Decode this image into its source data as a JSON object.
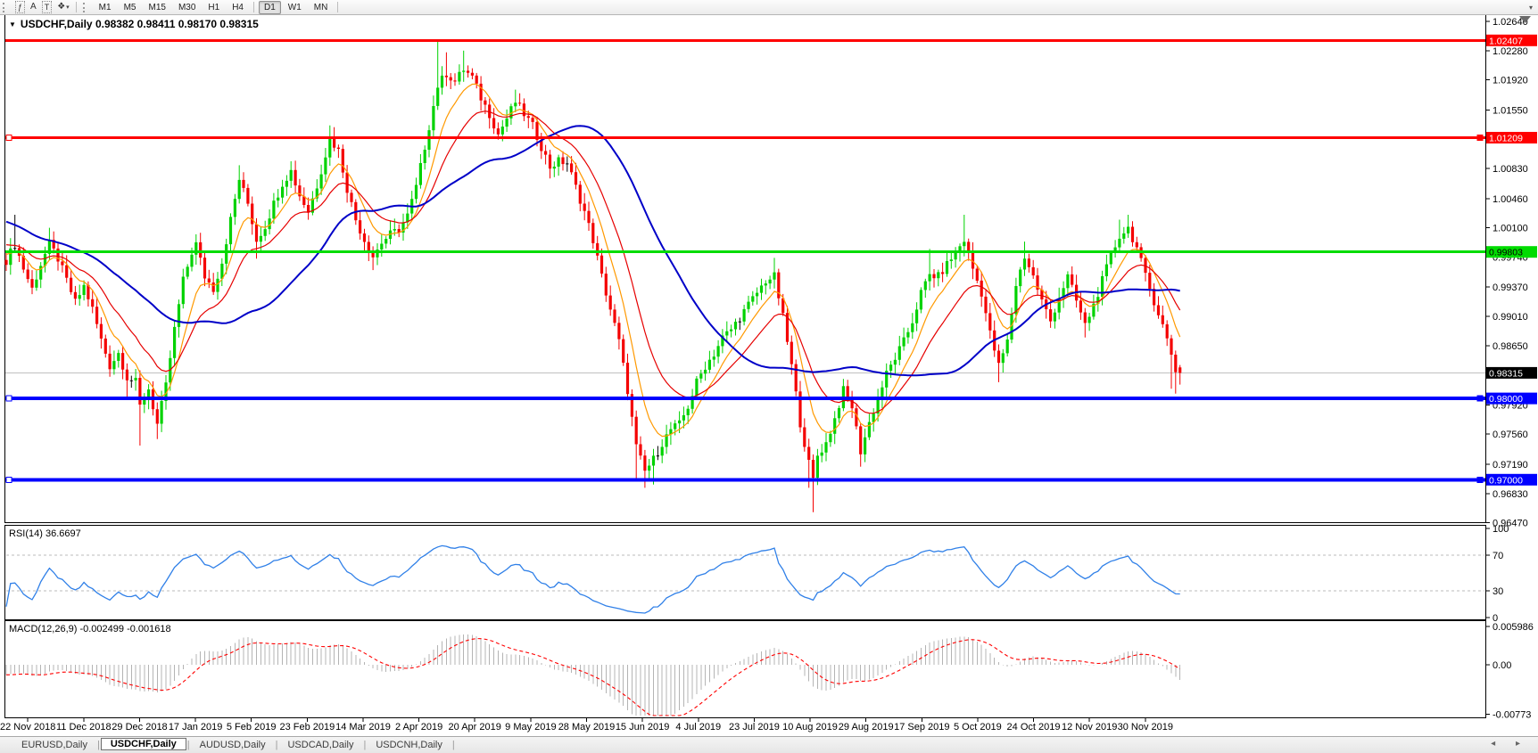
{
  "toolbar": {
    "tools": [
      {
        "id": "indicators",
        "glyph": "ƒ",
        "boxed": true
      },
      {
        "id": "text-label",
        "glyph": "A",
        "boxed": false
      },
      {
        "id": "text",
        "glyph": "T",
        "boxed": true
      },
      {
        "id": "arrow-styles",
        "glyph": "❖",
        "caret": true
      }
    ],
    "timeframes": [
      "M1",
      "M5",
      "M15",
      "M30",
      "H1",
      "H4",
      "D1",
      "W1",
      "MN"
    ],
    "active_timeframe": "D1",
    "overflow_icon": "▾"
  },
  "chart": {
    "dropdown_icon": "▼",
    "title_line": "USDCHF,Daily  0.98382 0.98411 0.98170 0.98315"
  },
  "indicators": {
    "rsi_label": "RSI(14) 36.6697",
    "macd_label": "MACD(12,26,9) -0.002499 -0.001618"
  },
  "tabs": {
    "items": [
      "EURUSD,Daily",
      "USDCHF,Daily",
      "AUDUSD,Daily",
      "USDCAD,Daily",
      "USDCNH,Daily"
    ],
    "active_index": 1,
    "scroll_left_icon": "◂",
    "scroll_right_icon": "▸"
  },
  "chart_data": {
    "type": "candlestick",
    "symbol": "USDCHF",
    "timeframe": "Daily",
    "ohlc_display": {
      "open": 0.98382,
      "high": 0.98411,
      "low": 0.9817,
      "close": 0.98315
    },
    "price_axis": {
      "range_top": 1.02717,
      "range_bottom": 0.96477,
      "ticks": [
        "1.02640",
        "1.02280",
        "1.01920",
        "1.01550",
        "1.00830",
        "1.00460",
        "1.00100",
        "0.99740",
        "0.99370",
        "0.99010",
        "0.98650",
        "0.97920",
        "0.97560",
        "0.97190",
        "0.96830",
        "0.96470"
      ]
    },
    "date_axis": [
      "22 Nov 2018",
      "11 Dec 2018",
      "29 Dec 2018",
      "17 Jan 2019",
      "5 Feb 2019",
      "23 Feb 2019",
      "14 Mar 2019",
      "2 Apr 2019",
      "20 Apr 2019",
      "9 May 2019",
      "28 May 2019",
      "15 Jun 2019",
      "4 Jul 2019",
      "23 Jul 2019",
      "10 Aug 2019",
      "29 Aug 2019",
      "17 Sep 2019",
      "5 Oct 2019",
      "24 Oct 2019",
      "12 Nov 2019",
      "30 Nov 2019"
    ],
    "levels": [
      {
        "value": 1.02407,
        "label": "1.02407",
        "color": "#ff0000",
        "tag_bg": "#ff0000",
        "tag_text": "#ffffff",
        "thickness": 3,
        "handles": false
      },
      {
        "value": 1.01209,
        "label": "1.01209",
        "color": "#ff0000",
        "tag_bg": "#ff0000",
        "tag_text": "#ffffff",
        "thickness": 3,
        "handles": true
      },
      {
        "value": 0.99803,
        "label": "0.99803",
        "color": "#00dc00",
        "tag_bg": "#00dc00",
        "tag_text": "#000000",
        "thickness": 3,
        "handles": false
      },
      {
        "value": 0.98315,
        "label": "0.98315",
        "color": "#c0c0c0",
        "tag_bg": "#000000",
        "tag_text": "#ffffff",
        "thickness": 1,
        "handles": false,
        "is_current_price": true
      },
      {
        "value": 0.98,
        "label": "0.98000",
        "color": "#0000ff",
        "tag_bg": "#0000ff",
        "tag_text": "#ffffff",
        "thickness": 4,
        "handles": true
      },
      {
        "value": 0.97,
        "label": "0.97000",
        "color": "#0000ff",
        "tag_bg": "#0000ff",
        "tag_text": "#ffffff",
        "thickness": 4,
        "handles": true
      }
    ],
    "candles": {
      "count": 273,
      "up_color": "#00d200",
      "down_color": "#f40000",
      "doji_color": "#000000",
      "close_waypoints": [
        [
          0,
          0.997
        ],
        [
          2,
          0.999
        ],
        [
          4,
          0.996
        ],
        [
          6,
          0.9935
        ],
        [
          8,
          0.9965
        ],
        [
          10,
          0.999
        ],
        [
          12,
          0.9972
        ],
        [
          14,
          0.9945
        ],
        [
          16,
          0.9918
        ],
        [
          18,
          0.9938
        ],
        [
          20,
          0.991
        ],
        [
          22,
          0.9872
        ],
        [
          24,
          0.984
        ],
        [
          26,
          0.9856
        ],
        [
          28,
          0.9826
        ],
        [
          30,
          0.982
        ],
        [
          31,
          0.979
        ],
        [
          33,
          0.9812
        ],
        [
          35,
          0.9768
        ],
        [
          37,
          0.9815
        ],
        [
          39,
          0.9885
        ],
        [
          41,
          0.9945
        ],
        [
          43,
          0.998
        ],
        [
          44,
          0.999
        ],
        [
          46,
          0.995
        ],
        [
          48,
          0.9935
        ],
        [
          50,
          0.9968
        ],
        [
          52,
          1.002
        ],
        [
          54,
          1.007
        ],
        [
          56,
          1.004
        ],
        [
          58,
          0.9995
        ],
        [
          60,
          1.0012
        ],
        [
          62,
          1.004
        ],
        [
          64,
          1.0065
        ],
        [
          66,
          1.008
        ],
        [
          68,
          1.005
        ],
        [
          70,
          1.003
        ],
        [
          72,
          1.0062
        ],
        [
          74,
          1.01
        ],
        [
          75,
          1.012
        ],
        [
          77,
          1.0105
        ],
        [
          79,
          1.0058
        ],
        [
          81,
          1.002
        ],
        [
          83,
          0.9995
        ],
        [
          85,
          0.9975
        ],
        [
          87,
          0.9992
        ],
        [
          89,
          1.0002
        ],
        [
          91,
          1.0008
        ],
        [
          93,
          1.0025
        ],
        [
          95,
          1.006
        ],
        [
          97,
          1.011
        ],
        [
          99,
          1.016
        ],
        [
          100,
          1.0185
        ],
        [
          102,
          1.02
        ],
        [
          104,
          1.019
        ],
        [
          106,
          1.0205
        ],
        [
          108,
          1.0195
        ],
        [
          110,
          1.017
        ],
        [
          112,
          1.015
        ],
        [
          114,
          1.0125
        ],
        [
          116,
          1.0145
        ],
        [
          118,
          1.0165
        ],
        [
          120,
          1.015
        ],
        [
          122,
          1.0135
        ],
        [
          124,
          1.011
        ],
        [
          126,
          1.0085
        ],
        [
          128,
          1.0092
        ],
        [
          130,
          1.009
        ],
        [
          132,
          1.006
        ],
        [
          134,
          1.003
        ],
        [
          136,
          0.9995
        ],
        [
          138,
          0.995
        ],
        [
          140,
          0.991
        ],
        [
          142,
          0.987
        ],
        [
          144,
          0.981
        ],
        [
          146,
          0.974
        ],
        [
          148,
          0.971
        ],
        [
          150,
          0.9725
        ],
        [
          152,
          0.9745
        ],
        [
          154,
          0.9762
        ],
        [
          156,
          0.9768
        ],
        [
          158,
          0.979
        ],
        [
          160,
          0.982
        ],
        [
          162,
          0.984
        ],
        [
          164,
          0.9855
        ],
        [
          166,
          0.9875
        ],
        [
          168,
          0.9885
        ],
        [
          170,
          0.99
        ],
        [
          172,
          0.9915
        ],
        [
          174,
          0.993
        ],
        [
          176,
          0.9945
        ],
        [
          178,
          0.995
        ],
        [
          180,
          0.99
        ],
        [
          182,
          0.984
        ],
        [
          184,
          0.977
        ],
        [
          186,
          0.972
        ],
        [
          187,
          0.97
        ],
        [
          188,
          0.973
        ],
        [
          190,
          0.9745
        ],
        [
          192,
          0.9775
        ],
        [
          194,
          0.981
        ],
        [
          196,
          0.979
        ],
        [
          198,
          0.9735
        ],
        [
          200,
          0.977
        ],
        [
          202,
          0.98
        ],
        [
          204,
          0.983
        ],
        [
          206,
          0.985
        ],
        [
          208,
          0.987
        ],
        [
          210,
          0.9895
        ],
        [
          212,
          0.993
        ],
        [
          214,
          0.9952
        ],
        [
          216,
          0.995
        ],
        [
          218,
          0.9965
        ],
        [
          220,
          0.998
        ],
        [
          222,
          0.9995
        ],
        [
          224,
          0.996
        ],
        [
          226,
          0.993
        ],
        [
          228,
          0.988
        ],
        [
          230,
          0.984
        ],
        [
          232,
          0.987
        ],
        [
          234,
          0.994
        ],
        [
          236,
          0.9975
        ],
        [
          238,
          0.995
        ],
        [
          240,
          0.992
        ],
        [
          242,
          0.9895
        ],
        [
          244,
          0.9925
        ],
        [
          246,
          0.995
        ],
        [
          248,
          0.992
        ],
        [
          250,
          0.989
        ],
        [
          252,
          0.9915
        ],
        [
          254,
          0.9945
        ],
        [
          256,
          0.9975
        ],
        [
          258,
          1.0
        ],
        [
          260,
          1.001
        ],
        [
          262,
          0.9985
        ],
        [
          264,
          0.995
        ],
        [
          266,
          0.992
        ],
        [
          268,
          0.989
        ],
        [
          270,
          0.9855
        ],
        [
          271,
          0.9835
        ],
        [
          272,
          0.98315
        ]
      ],
      "wick_overrides": [
        {
          "i": 2,
          "h": 1.0026
        },
        {
          "i": 10,
          "h": 1.001
        },
        {
          "i": 28,
          "l": 0.98
        },
        {
          "i": 31,
          "l": 0.9742
        },
        {
          "i": 35,
          "l": 0.975
        },
        {
          "i": 44,
          "h": 1.0002
        },
        {
          "i": 54,
          "h": 1.0087
        },
        {
          "i": 58,
          "l": 0.9972
        },
        {
          "i": 66,
          "h": 1.0092
        },
        {
          "i": 75,
          "h": 1.0136
        },
        {
          "i": 85,
          "l": 0.9958
        },
        {
          "i": 100,
          "h": 1.0239
        },
        {
          "i": 102,
          "h": 1.0226
        },
        {
          "i": 106,
          "h": 1.0228
        },
        {
          "i": 118,
          "h": 1.018
        },
        {
          "i": 146,
          "l": 0.97
        },
        {
          "i": 148,
          "l": 0.969
        },
        {
          "i": 150,
          "l": 0.9694
        },
        {
          "i": 178,
          "h": 0.9973
        },
        {
          "i": 186,
          "l": 0.969
        },
        {
          "i": 187,
          "l": 0.966
        },
        {
          "i": 198,
          "l": 0.9716
        },
        {
          "i": 214,
          "h": 0.9984
        },
        {
          "i": 222,
          "h": 1.0026
        },
        {
          "i": 230,
          "l": 0.982
        },
        {
          "i": 236,
          "h": 0.9993
        },
        {
          "i": 250,
          "l": 0.9875
        },
        {
          "i": 258,
          "h": 1.002
        },
        {
          "i": 260,
          "h": 1.0026
        },
        {
          "i": 270,
          "l": 0.9812
        },
        {
          "i": 271,
          "l": 0.9806
        },
        {
          "i": 272,
          "l": 0.9817,
          "h": 0.98411
        }
      ]
    },
    "moving_averages": [
      {
        "name": "fast",
        "method": "ema",
        "period": 8,
        "color": "#ff9900",
        "width": 1.2
      },
      {
        "name": "medium",
        "method": "ema",
        "period": 18,
        "color": "#e60000",
        "width": 1.2
      },
      {
        "name": "slow",
        "method": "sma",
        "period": 40,
        "color": "#0000c8",
        "width": 2
      }
    ],
    "prehistory": {
      "bars": 40,
      "start_close": 1.0065,
      "end_close": 0.9975
    },
    "rsi_panel": {
      "period": 14,
      "color": "#3080e8",
      "levels": [
        70,
        30
      ],
      "ticks": [
        "100",
        "70",
        "30",
        "0"
      ],
      "last_value": 36.6697
    },
    "macd_panel": {
      "fast": 12,
      "slow": 26,
      "signal": 9,
      "histogram_color": "#b4b4b4",
      "signal_color": "#ff0000",
      "ticks": [
        "0.005986",
        "0.00",
        "-0.00773"
      ],
      "last_macd": -0.002499,
      "last_signal": -0.001618
    }
  }
}
